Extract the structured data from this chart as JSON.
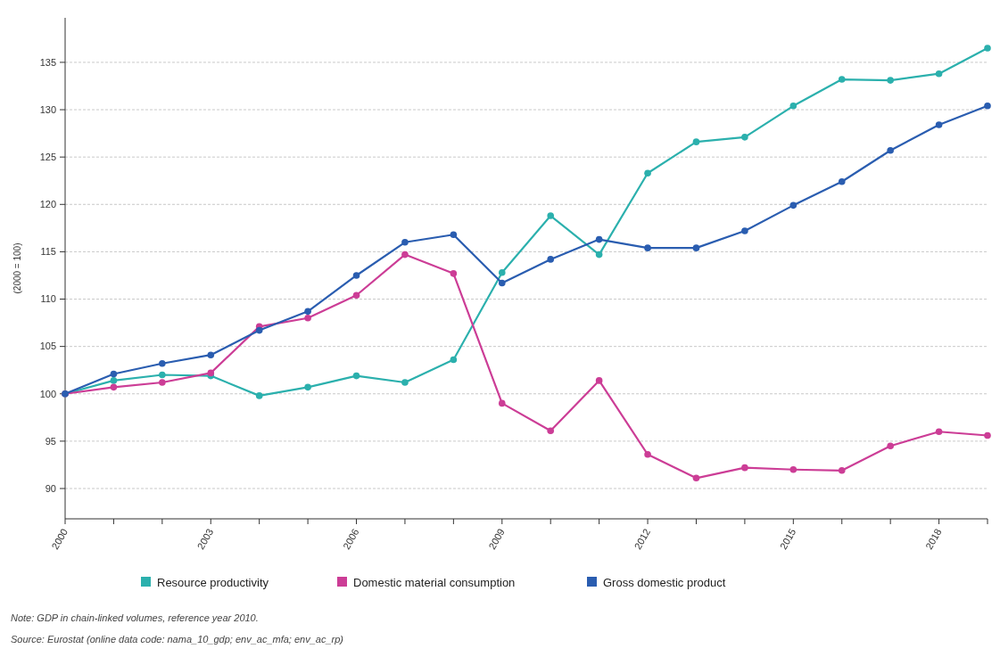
{
  "chart_data": {
    "type": "line",
    "ylabel": "(2000 = 100)",
    "x": [
      2000,
      2001,
      2002,
      2003,
      2004,
      2005,
      2006,
      2007,
      2008,
      2009,
      2010,
      2011,
      2012,
      2013,
      2014,
      2015,
      2016,
      2017,
      2018,
      2019
    ],
    "series": [
      {
        "name": "Resource productivity",
        "color": "#2bb0ad",
        "values": [
          100,
          101.4,
          102,
          101.9,
          99.8,
          100.7,
          101.9,
          101.2,
          103.6,
          112.8,
          118.8,
          114.7,
          123.3,
          126.6,
          127.1,
          130.4,
          133.2,
          133.1,
          133.8,
          136.5
        ]
      },
      {
        "name": "Domestic material consumption",
        "color": "#cc3d96",
        "values": [
          100,
          100.7,
          101.2,
          102.2,
          107.1,
          108.0,
          110.4,
          114.7,
          112.7,
          99.0,
          96.1,
          101.4,
          93.6,
          91.1,
          92.2,
          92.0,
          91.9,
          94.5,
          96.0,
          95.6
        ]
      },
      {
        "name": "Gross domestic product",
        "color": "#2a5db0",
        "values": [
          100,
          102.1,
          103.2,
          104.1,
          106.7,
          108.7,
          112.5,
          116.0,
          116.8,
          111.7,
          114.2,
          116.3,
          115.4,
          115.4,
          117.2,
          119.9,
          122.4,
          125.7,
          128.4,
          130.4
        ]
      }
    ],
    "xlim": [
      2000,
      2019
    ],
    "xticks": [
      2000,
      {
        "value": 2001,
        "label": null
      },
      {
        "value": 2002,
        "label": null
      },
      2003,
      {
        "value": 2004,
        "label": null
      },
      {
        "value": 2005,
        "label": null
      },
      2006,
      {
        "value": 2007,
        "label": null
      },
      {
        "value": 2008,
        "label": null
      },
      2009,
      {
        "value": 2010,
        "label": null
      },
      {
        "value": 2011,
        "label": null
      },
      2012,
      {
        "value": 2013,
        "label": null
      },
      {
        "value": 2014,
        "label": null
      },
      2015,
      {
        "value": 2016,
        "label": null
      },
      {
        "value": 2017,
        "label": null
      },
      2018,
      {
        "value": 2019,
        "label": null
      }
    ],
    "ylim": [
      86.8,
      139.7
    ],
    "yticks": [
      90,
      95,
      100,
      105,
      110,
      115,
      120,
      125,
      130,
      135
    ],
    "grid": "y",
    "legend": "bottom",
    "marker": "circle",
    "line_style": "solid",
    "annotations": [
      "Note: GDP in chain-linked volumes, reference year 2010.",
      "Source: Eurostat (online data code: nama_10_gdp; env_ac_mfa; env_ac_rp)"
    ]
  }
}
